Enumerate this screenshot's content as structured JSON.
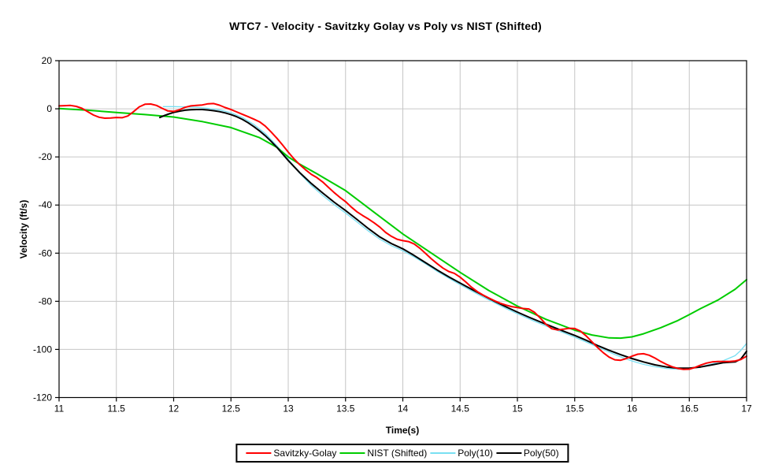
{
  "title": "WTC7 - Velocity - Savitzky Golay vs Poly vs NIST (Shifted)",
  "chart_data": {
    "type": "line",
    "title": "WTC7 - Velocity - Savitzky Golay vs Poly vs NIST (Shifted)",
    "xlabel": "Time(s)",
    "ylabel": "Velocity (ft/s)",
    "xlim": [
      11,
      17
    ],
    "ylim": [
      -120,
      20
    ],
    "grid": true,
    "legend_position": "bottom",
    "plot_bg": "#ffffff",
    "grid_color": "#c6c6c6",
    "axis_color": "#000000",
    "xticks": [
      {
        "v": 11,
        "label": "11"
      },
      {
        "v": 11.5,
        "label": "11.5"
      },
      {
        "v": 12,
        "label": "12"
      },
      {
        "v": 12.5,
        "label": "12.5"
      },
      {
        "v": 13,
        "label": "13"
      },
      {
        "v": 13.5,
        "label": "13.5"
      },
      {
        "v": 14,
        "label": "14"
      },
      {
        "v": 14.5,
        "label": "14.5"
      },
      {
        "v": 15,
        "label": "15"
      },
      {
        "v": 15.5,
        "label": "15.5"
      },
      {
        "v": 16,
        "label": "16"
      },
      {
        "v": 16.5,
        "label": "16.5"
      },
      {
        "v": 17,
        "label": "17"
      }
    ],
    "yticks": [
      {
        "v": 20,
        "label": "20"
      },
      {
        "v": 0,
        "label": "0"
      },
      {
        "v": -20,
        "label": "-20"
      },
      {
        "v": -40,
        "label": "-40"
      },
      {
        "v": -60,
        "label": "-60"
      },
      {
        "v": -80,
        "label": "-80"
      },
      {
        "v": -100,
        "label": "-100"
      },
      {
        "v": -120,
        "label": "-120"
      }
    ],
    "series": [
      {
        "name": "Poly(10)",
        "color": "#79dff2",
        "width": 1.3,
        "points": [
          [
            11.91,
            0.9
          ],
          [
            12.0,
            0.9
          ],
          [
            12.1,
            0.8
          ],
          [
            12.2,
            0.6
          ],
          [
            12.3,
            0.2
          ],
          [
            12.4,
            -0.5
          ],
          [
            12.5,
            -1.6
          ],
          [
            12.6,
            -3.6
          ],
          [
            12.7,
            -6.5
          ],
          [
            12.8,
            -10.3
          ],
          [
            12.9,
            -15.3
          ],
          [
            13.0,
            -21.0
          ],
          [
            13.1,
            -26.8
          ],
          [
            13.2,
            -31.8
          ],
          [
            13.3,
            -36.0
          ],
          [
            13.4,
            -39.8
          ],
          [
            13.5,
            -43.3
          ],
          [
            13.6,
            -47.0
          ],
          [
            13.7,
            -50.8
          ],
          [
            13.8,
            -54.2
          ],
          [
            13.9,
            -56.9
          ],
          [
            14.0,
            -59.0
          ],
          [
            14.1,
            -61.6
          ],
          [
            14.2,
            -64.5
          ],
          [
            14.3,
            -67.6
          ],
          [
            14.4,
            -70.4
          ],
          [
            14.5,
            -73.1
          ],
          [
            14.6,
            -75.7
          ],
          [
            14.7,
            -78.2
          ],
          [
            14.8,
            -80.6
          ],
          [
            14.9,
            -83.0
          ],
          [
            15.0,
            -85.2
          ],
          [
            15.1,
            -87.3
          ],
          [
            15.2,
            -89.3
          ],
          [
            15.3,
            -91.2
          ],
          [
            15.4,
            -93.0
          ],
          [
            15.5,
            -94.9
          ],
          [
            15.6,
            -96.9
          ],
          [
            15.7,
            -99.0
          ],
          [
            15.8,
            -101.1
          ],
          [
            15.9,
            -103.1
          ],
          [
            16.0,
            -104.8
          ],
          [
            16.1,
            -106.2
          ],
          [
            16.2,
            -107.2
          ],
          [
            16.3,
            -107.9
          ],
          [
            16.4,
            -108.2
          ],
          [
            16.5,
            -108.0
          ],
          [
            16.6,
            -107.2
          ],
          [
            16.7,
            -106.0
          ],
          [
            16.8,
            -104.6
          ],
          [
            16.9,
            -102.6
          ],
          [
            16.95,
            -100.4
          ],
          [
            17.0,
            -97.5
          ]
        ]
      },
      {
        "name": "NIST (Shifted)",
        "color": "#00cc00",
        "width": 2,
        "points": [
          [
            11.0,
            0.1
          ],
          [
            11.25,
            -0.6
          ],
          [
            11.5,
            -1.5
          ],
          [
            11.75,
            -2.4
          ],
          [
            12.0,
            -3.4
          ],
          [
            12.25,
            -5.3
          ],
          [
            12.5,
            -7.8
          ],
          [
            12.75,
            -12.0
          ],
          [
            12.9,
            -16.0
          ],
          [
            13.0,
            -20.0
          ],
          [
            13.1,
            -23.0
          ],
          [
            13.25,
            -27.0
          ],
          [
            13.5,
            -34.0
          ],
          [
            13.75,
            -43.0
          ],
          [
            14.0,
            -52.0
          ],
          [
            14.25,
            -60.0
          ],
          [
            14.5,
            -68.0
          ],
          [
            14.75,
            -75.5
          ],
          [
            15.0,
            -82.0
          ],
          [
            15.25,
            -87.5
          ],
          [
            15.5,
            -92.0
          ],
          [
            15.65,
            -94.0
          ],
          [
            15.8,
            -95.2
          ],
          [
            15.9,
            -95.3
          ],
          [
            16.0,
            -94.8
          ],
          [
            16.1,
            -93.5
          ],
          [
            16.25,
            -91.0
          ],
          [
            16.4,
            -88.0
          ],
          [
            16.5,
            -85.5
          ],
          [
            16.6,
            -83.0
          ],
          [
            16.75,
            -79.5
          ],
          [
            16.9,
            -75.0
          ],
          [
            17.0,
            -71.0
          ]
        ]
      },
      {
        "name": "Poly(50)",
        "color": "#000000",
        "width": 2,
        "points": [
          [
            11.88,
            -3.6
          ],
          [
            11.92,
            -2.8
          ],
          [
            11.96,
            -2.1
          ],
          [
            12.0,
            -1.5
          ],
          [
            12.05,
            -1.0
          ],
          [
            12.1,
            -0.6
          ],
          [
            12.15,
            -0.4
          ],
          [
            12.2,
            -0.3
          ],
          [
            12.25,
            -0.3
          ],
          [
            12.3,
            -0.5
          ],
          [
            12.35,
            -0.8
          ],
          [
            12.4,
            -1.2
          ],
          [
            12.45,
            -1.7
          ],
          [
            12.5,
            -2.4
          ],
          [
            12.55,
            -3.3
          ],
          [
            12.6,
            -4.4
          ],
          [
            12.65,
            -5.8
          ],
          [
            12.7,
            -7.4
          ],
          [
            12.75,
            -9.2
          ],
          [
            12.8,
            -11.2
          ],
          [
            12.85,
            -13.5
          ],
          [
            12.9,
            -16.0
          ],
          [
            12.95,
            -18.7
          ],
          [
            13.0,
            -21.5
          ],
          [
            13.1,
            -26.5
          ],
          [
            13.2,
            -31.0
          ],
          [
            13.3,
            -35.0
          ],
          [
            13.4,
            -38.8
          ],
          [
            13.5,
            -42.3
          ],
          [
            13.6,
            -46.0
          ],
          [
            13.7,
            -49.8
          ],
          [
            13.8,
            -53.3
          ],
          [
            13.9,
            -56.0
          ],
          [
            14.0,
            -58.2
          ],
          [
            14.1,
            -61.0
          ],
          [
            14.2,
            -64.0
          ],
          [
            14.3,
            -67.0
          ],
          [
            14.4,
            -69.8
          ],
          [
            14.5,
            -72.4
          ],
          [
            14.6,
            -75.0
          ],
          [
            14.7,
            -77.5
          ],
          [
            14.8,
            -80.0
          ],
          [
            14.9,
            -82.3
          ],
          [
            15.0,
            -84.5
          ],
          [
            15.1,
            -86.6
          ],
          [
            15.2,
            -88.6
          ],
          [
            15.3,
            -90.5
          ],
          [
            15.4,
            -92.4
          ],
          [
            15.5,
            -94.2
          ],
          [
            15.6,
            -96.2
          ],
          [
            15.7,
            -98.4
          ],
          [
            15.8,
            -100.4
          ],
          [
            15.9,
            -102.2
          ],
          [
            16.0,
            -103.8
          ],
          [
            16.1,
            -105.2
          ],
          [
            16.2,
            -106.4
          ],
          [
            16.3,
            -107.3
          ],
          [
            16.4,
            -107.8
          ],
          [
            16.5,
            -107.8
          ],
          [
            16.6,
            -107.3
          ],
          [
            16.7,
            -106.4
          ],
          [
            16.8,
            -105.5
          ],
          [
            16.9,
            -105.2
          ],
          [
            16.95,
            -104.0
          ],
          [
            17.0,
            -100.8
          ]
        ]
      },
      {
        "name": "Savitzky-Golay",
        "color": "#ff0000",
        "width": 2,
        "points": [
          [
            11.0,
            1.2
          ],
          [
            11.05,
            1.3
          ],
          [
            11.1,
            1.4
          ],
          [
            11.15,
            1.0
          ],
          [
            11.2,
            0.2
          ],
          [
            11.25,
            -1.2
          ],
          [
            11.3,
            -2.6
          ],
          [
            11.35,
            -3.5
          ],
          [
            11.4,
            -3.9
          ],
          [
            11.45,
            -3.8
          ],
          [
            11.5,
            -3.6
          ],
          [
            11.55,
            -3.7
          ],
          [
            11.6,
            -3.0
          ],
          [
            11.65,
            -1.2
          ],
          [
            11.7,
            0.8
          ],
          [
            11.75,
            1.9
          ],
          [
            11.8,
            2.0
          ],
          [
            11.85,
            1.4
          ],
          [
            11.9,
            0.2
          ],
          [
            11.95,
            -0.9
          ],
          [
            12.0,
            -1.1
          ],
          [
            12.05,
            -0.4
          ],
          [
            12.1,
            0.6
          ],
          [
            12.15,
            1.2
          ],
          [
            12.2,
            1.4
          ],
          [
            12.25,
            1.6
          ],
          [
            12.3,
            2.1
          ],
          [
            12.35,
            2.2
          ],
          [
            12.4,
            1.5
          ],
          [
            12.45,
            0.5
          ],
          [
            12.5,
            -0.3
          ],
          [
            12.55,
            -1.3
          ],
          [
            12.6,
            -2.3
          ],
          [
            12.65,
            -3.3
          ],
          [
            12.7,
            -4.3
          ],
          [
            12.75,
            -5.4
          ],
          [
            12.8,
            -7.2
          ],
          [
            12.85,
            -9.6
          ],
          [
            12.9,
            -12.2
          ],
          [
            12.95,
            -15.0
          ],
          [
            13.0,
            -18.0
          ],
          [
            13.05,
            -20.8
          ],
          [
            13.1,
            -23.2
          ],
          [
            13.15,
            -25.3
          ],
          [
            13.2,
            -27.2
          ],
          [
            13.25,
            -28.6
          ],
          [
            13.3,
            -30.4
          ],
          [
            13.35,
            -32.6
          ],
          [
            13.4,
            -34.8
          ],
          [
            13.45,
            -36.8
          ],
          [
            13.5,
            -38.6
          ],
          [
            13.55,
            -40.8
          ],
          [
            13.6,
            -42.8
          ],
          [
            13.65,
            -44.4
          ],
          [
            13.7,
            -45.8
          ],
          [
            13.75,
            -47.4
          ],
          [
            13.8,
            -49.2
          ],
          [
            13.85,
            -51.4
          ],
          [
            13.9,
            -53.0
          ],
          [
            13.95,
            -54.2
          ],
          [
            14.0,
            -54.8
          ],
          [
            14.05,
            -55.2
          ],
          [
            14.1,
            -56.2
          ],
          [
            14.15,
            -58.0
          ],
          [
            14.2,
            -60.2
          ],
          [
            14.25,
            -62.4
          ],
          [
            14.3,
            -64.4
          ],
          [
            14.35,
            -66.2
          ],
          [
            14.4,
            -67.6
          ],
          [
            14.45,
            -68.4
          ],
          [
            14.5,
            -70.0
          ],
          [
            14.55,
            -72.0
          ],
          [
            14.6,
            -74.2
          ],
          [
            14.65,
            -76.0
          ],
          [
            14.7,
            -77.4
          ],
          [
            14.75,
            -78.6
          ],
          [
            14.8,
            -79.8
          ],
          [
            14.85,
            -80.8
          ],
          [
            14.9,
            -81.6
          ],
          [
            14.95,
            -82.2
          ],
          [
            15.0,
            -82.6
          ],
          [
            15.05,
            -83.0
          ],
          [
            15.1,
            -83.2
          ],
          [
            15.15,
            -84.6
          ],
          [
            15.2,
            -87.0
          ],
          [
            15.25,
            -89.6
          ],
          [
            15.3,
            -91.4
          ],
          [
            15.35,
            -91.9
          ],
          [
            15.4,
            -91.6
          ],
          [
            15.45,
            -91.2
          ],
          [
            15.5,
            -91.3
          ],
          [
            15.55,
            -92.4
          ],
          [
            15.6,
            -94.4
          ],
          [
            15.65,
            -96.8
          ],
          [
            15.7,
            -99.2
          ],
          [
            15.75,
            -101.4
          ],
          [
            15.8,
            -103.2
          ],
          [
            15.85,
            -104.3
          ],
          [
            15.9,
            -104.5
          ],
          [
            15.95,
            -103.8
          ],
          [
            16.0,
            -102.8
          ],
          [
            16.05,
            -102.0
          ],
          [
            16.1,
            -101.8
          ],
          [
            16.15,
            -102.4
          ],
          [
            16.2,
            -103.6
          ],
          [
            16.25,
            -105.0
          ],
          [
            16.3,
            -106.2
          ],
          [
            16.35,
            -107.2
          ],
          [
            16.4,
            -107.9
          ],
          [
            16.45,
            -108.3
          ],
          [
            16.5,
            -108.2
          ],
          [
            16.55,
            -107.5
          ],
          [
            16.6,
            -106.5
          ],
          [
            16.65,
            -105.7
          ],
          [
            16.7,
            -105.2
          ],
          [
            16.75,
            -105.0
          ],
          [
            16.8,
            -105.0
          ],
          [
            16.85,
            -105.0
          ],
          [
            16.9,
            -104.8
          ],
          [
            16.95,
            -104.2
          ],
          [
            17.0,
            -102.8
          ]
        ]
      }
    ],
    "legend": [
      "Savitzky-Golay",
      "NIST (Shifted)",
      "Poly(10)",
      "Poly(50)"
    ]
  }
}
